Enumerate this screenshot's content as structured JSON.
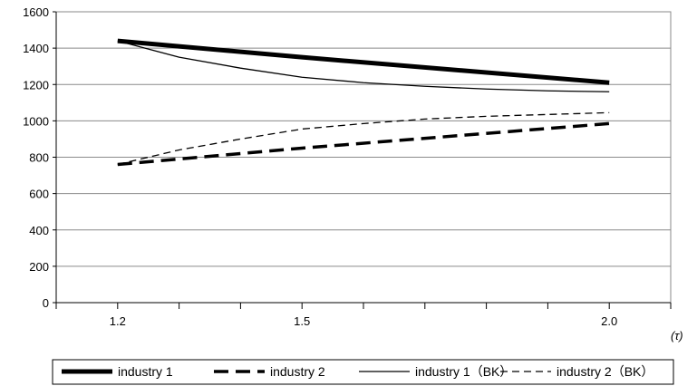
{
  "chart_data": {
    "type": "line",
    "title": "",
    "xlabel": "(τ)",
    "ylabel": "",
    "xlim": [
      1.1,
      2.1
    ],
    "ylim": [
      0,
      1600
    ],
    "y_ticks": [
      "0",
      "200",
      "400",
      "600",
      "800",
      "1000",
      "1200",
      "1400",
      "1600"
    ],
    "x_tick_labels": [
      {
        "x": 1.2,
        "label": "1.2"
      },
      {
        "x": 1.5,
        "label": "1.5"
      },
      {
        "x": 2.0,
        "label": "2.0"
      }
    ],
    "x_minor_ticks": [
      1.1,
      1.2,
      1.3,
      1.4,
      1.5,
      1.6,
      1.7,
      1.8,
      1.9,
      2.0,
      2.1
    ],
    "grid": "horizontal",
    "legend_position": "bottom",
    "series": [
      {
        "name": "industry 1",
        "style": "thick-solid",
        "color": "#000000",
        "x": [
          1.2,
          1.5,
          2.0
        ],
        "values": [
          1440,
          1350,
          1210
        ]
      },
      {
        "name": "industry 2",
        "style": "thick-dashed",
        "color": "#000000",
        "x": [
          1.2,
          1.5,
          2.0
        ],
        "values": [
          760,
          850,
          985
        ]
      },
      {
        "name": "industry 1（BK）",
        "style": "thin-solid",
        "color": "#000000",
        "x": [
          1.2,
          1.3,
          1.4,
          1.5,
          1.6,
          1.7,
          1.8,
          1.9,
          2.0
        ],
        "values": [
          1440,
          1350,
          1290,
          1240,
          1210,
          1190,
          1175,
          1165,
          1160
        ]
      },
      {
        "name": "industry 2（BK）",
        "style": "thin-dashed",
        "color": "#000000",
        "x": [
          1.2,
          1.3,
          1.4,
          1.5,
          1.6,
          1.7,
          1.8,
          1.9,
          2.0
        ],
        "values": [
          760,
          840,
          900,
          955,
          985,
          1010,
          1025,
          1035,
          1045
        ]
      }
    ]
  }
}
